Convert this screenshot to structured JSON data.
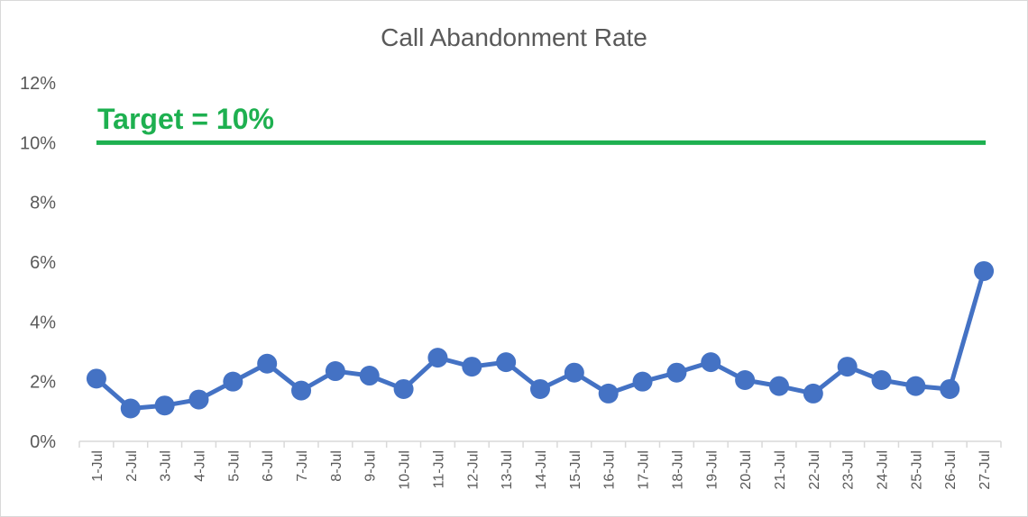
{
  "chart_data": {
    "type": "line",
    "title": "Call Abandonment Rate",
    "xlabel": "",
    "ylabel": "",
    "ylim": [
      0,
      12
    ],
    "yticks": [
      "0%",
      "2%",
      "4%",
      "6%",
      "8%",
      "10%",
      "12%"
    ],
    "categories": [
      "1-Jul",
      "2-Jul",
      "3-Jul",
      "4-Jul",
      "5-Jul",
      "6-Jul",
      "7-Jul",
      "8-Jul",
      "9-Jul",
      "10-Jul",
      "11-Jul",
      "12-Jul",
      "13-Jul",
      "14-Jul",
      "15-Jul",
      "16-Jul",
      "17-Jul",
      "18-Jul",
      "19-Jul",
      "20-Jul",
      "21-Jul",
      "22-Jul",
      "23-Jul",
      "24-Jul",
      "25-Jul",
      "26-Jul",
      "27-Jul"
    ],
    "series": [
      {
        "values": [
          2.1,
          1.1,
          1.2,
          1.4,
          2.0,
          2.6,
          1.7,
          2.35,
          2.2,
          1.75,
          2.8,
          2.5,
          2.65,
          1.75,
          2.3,
          1.6,
          2.0,
          2.3,
          2.65,
          2.05,
          1.85,
          1.6,
          2.5,
          2.05,
          1.85,
          1.75,
          5.7
        ],
        "color": "#4472c4"
      }
    ],
    "target": {
      "value": 10,
      "label": "Target = 10%",
      "color": "#1eb050"
    },
    "grid": false,
    "legend": "none"
  }
}
